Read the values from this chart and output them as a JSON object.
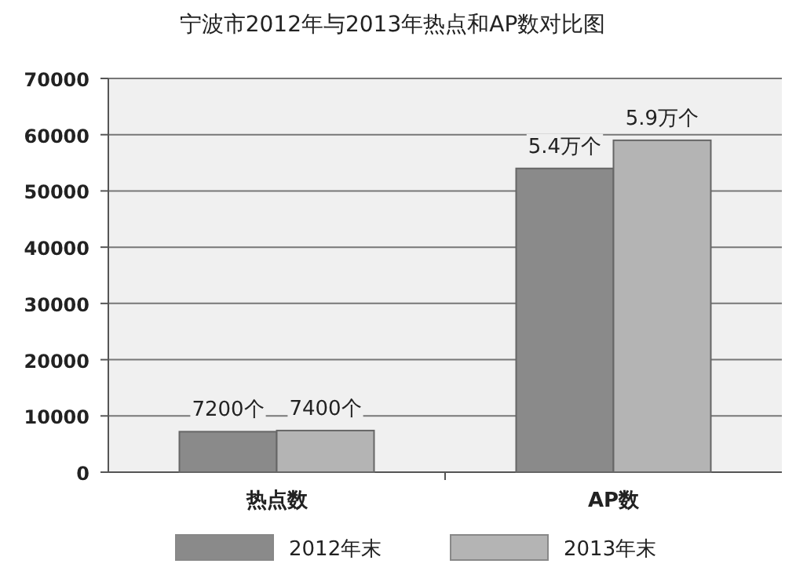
{
  "chart_data": {
    "type": "bar",
    "title": "宁波市2012年与2013年热点和AP数对比图",
    "categories": [
      "热点数",
      "AP数"
    ],
    "series": [
      {
        "name": "2012年末",
        "color": "#8a8a8a",
        "values": [
          7200,
          54000
        ]
      },
      {
        "name": "2013年末",
        "color": "#b4b4b4",
        "values": [
          7400,
          59000
        ]
      }
    ],
    "annotations": [
      {
        "text": "7200个",
        "x": "热点数",
        "y": 7200
      },
      {
        "text": "7400个",
        "x": "热点数",
        "y": 7400
      },
      {
        "text": "5.4万个",
        "x": "AP数",
        "y": 54000
      },
      {
        "text": "5.9万个",
        "x": "AP数",
        "y": 59000
      }
    ],
    "ylim": [
      0,
      70000
    ],
    "yticks": [
      0,
      10000,
      20000,
      30000,
      40000,
      50000,
      60000,
      70000
    ],
    "grid": "y",
    "legend": "bottom"
  }
}
